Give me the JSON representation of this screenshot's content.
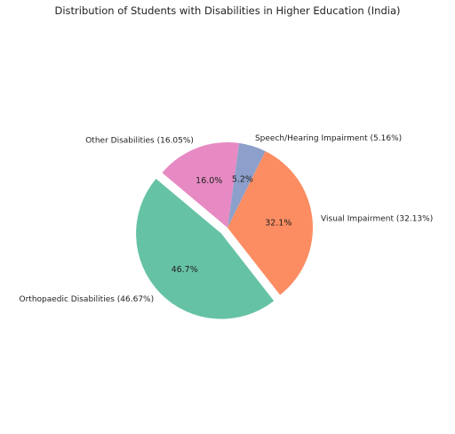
{
  "chart_data": {
    "type": "pie",
    "title": "Distribution of Students with Disabilities in Higher Education (India)",
    "slices": [
      {
        "label": "Orthopaedic Disabilities (46.67%)",
        "value": 46.67,
        "pct_label": "46.7%",
        "color": "#66c2a5",
        "exploded": true
      },
      {
        "label": "Visual Impairment (32.13%)",
        "value": 32.13,
        "pct_label": "32.1%",
        "color": "#fc8d62",
        "exploded": false
      },
      {
        "label": "Speech/Hearing Impairment (5.16%)",
        "value": 5.16,
        "pct_label": "5.2%",
        "color": "#8da0cb",
        "exploded": false
      },
      {
        "label": "Other Disabilities (16.05%)",
        "value": 16.05,
        "pct_label": "16.0%",
        "color": "#e78ac3",
        "exploded": false
      }
    ],
    "start_angle_deg": 140,
    "direction": "counterclockwise"
  }
}
